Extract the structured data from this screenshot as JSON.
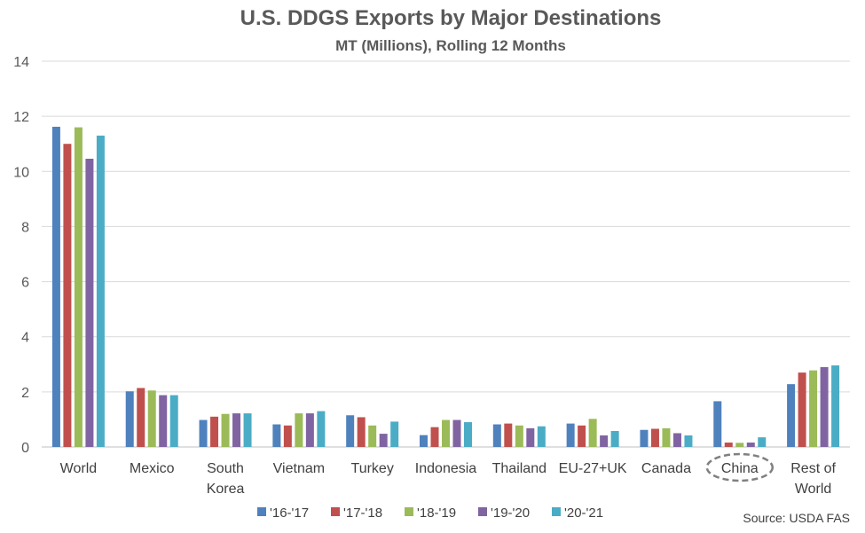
{
  "chart_data": {
    "type": "bar",
    "title": "U.S. DDGS Exports by Major Destinations",
    "subtitle": "MT (Millions), Rolling 12 Months",
    "source": "Source: USDA FAS",
    "categories": [
      [
        "World"
      ],
      [
        "Mexico"
      ],
      [
        "South",
        "Korea"
      ],
      [
        "Vietnam"
      ],
      [
        "Turkey"
      ],
      [
        "Indonesia"
      ],
      [
        "Thailand"
      ],
      [
        "EU-27+UK"
      ],
      [
        "Canada"
      ],
      [
        "China"
      ],
      [
        "Rest of",
        "World"
      ]
    ],
    "highlighted_category": "China",
    "ylim": [
      0,
      14
    ],
    "yticks": [
      0,
      2,
      4,
      6,
      8,
      10,
      12,
      14
    ],
    "grid": true,
    "legend_position": "bottom",
    "series": [
      {
        "name": "'16-'17",
        "color": "#4F81BD",
        "values": [
          11.62,
          2.02,
          0.98,
          0.82,
          1.15,
          0.43,
          0.82,
          0.85,
          0.62,
          1.66,
          2.28
        ]
      },
      {
        "name": "'17-'18",
        "color": "#C0504D",
        "values": [
          11.0,
          2.14,
          1.1,
          0.78,
          1.08,
          0.72,
          0.85,
          0.78,
          0.66,
          0.16,
          2.7
        ]
      },
      {
        "name": "'18-'19",
        "color": "#9BBB59",
        "values": [
          11.6,
          2.05,
          1.2,
          1.22,
          0.78,
          0.98,
          0.78,
          1.02,
          0.68,
          0.15,
          2.78
        ]
      },
      {
        "name": "'19-'20",
        "color": "#8064A2",
        "values": [
          10.46,
          1.88,
          1.22,
          1.22,
          0.48,
          0.98,
          0.68,
          0.42,
          0.5,
          0.16,
          2.9
        ]
      },
      {
        "name": "'20-'21",
        "color": "#4BACC6",
        "values": [
          11.3,
          1.88,
          1.22,
          1.3,
          0.92,
          0.9,
          0.75,
          0.58,
          0.42,
          0.35,
          2.96
        ]
      }
    ]
  }
}
